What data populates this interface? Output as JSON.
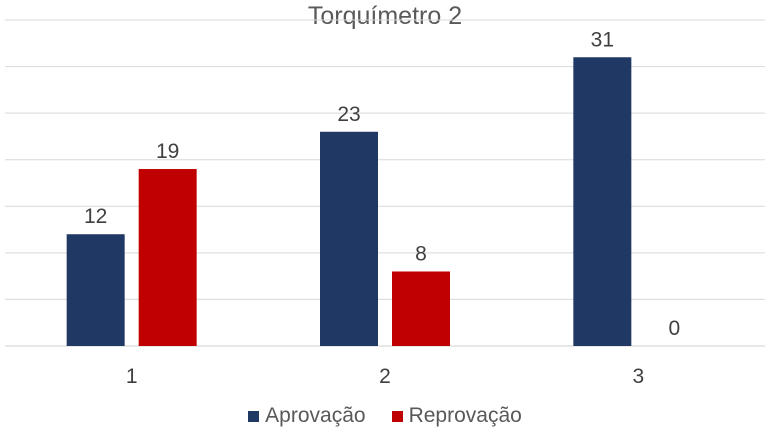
{
  "chart_data": {
    "type": "bar",
    "title": "Torquímetro 2",
    "categories": [
      "1",
      "2",
      "3"
    ],
    "series": [
      {
        "name": "Aprovação",
        "values": [
          12,
          23,
          31
        ],
        "color": "#203864"
      },
      {
        "name": "Reprovação",
        "values": [
          19,
          8,
          0
        ],
        "color": "#C00000"
      }
    ],
    "ylim": [
      0,
      35
    ],
    "grid": true,
    "legend": "bottom",
    "data_labels": true
  }
}
